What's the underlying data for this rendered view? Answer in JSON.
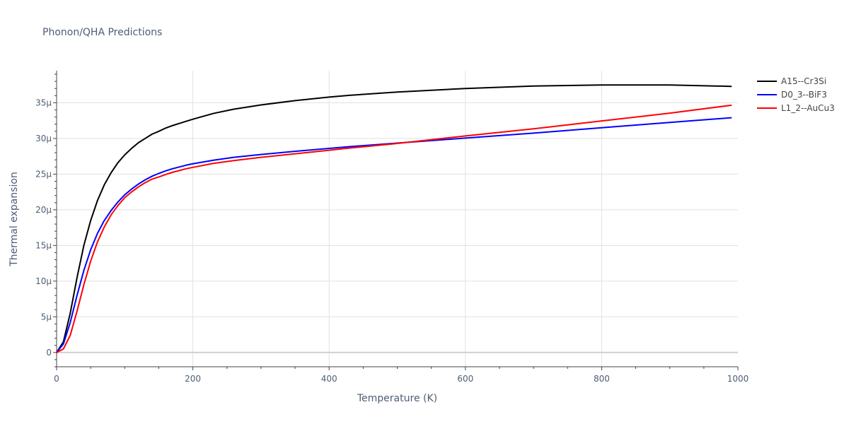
{
  "chart_data": {
    "type": "line",
    "title": "Phonon/QHA Predictions",
    "xlabel": "Temperature (K)",
    "ylabel": "Thermal expansion",
    "xlim": [
      0,
      1000
    ],
    "ylim": [
      -2e-06,
      3.95e-05
    ],
    "x_ticks": [
      0,
      200,
      400,
      600,
      800,
      1000
    ],
    "x_tick_labels": [
      "0",
      "200",
      "400",
      "600",
      "800",
      "1000"
    ],
    "y_ticks": [
      0,
      5e-06,
      1e-05,
      1.5e-05,
      2e-05,
      2.5e-05,
      3e-05,
      3.5e-05
    ],
    "y_tick_labels": [
      "0",
      "5μ",
      "10μ",
      "15μ",
      "20μ",
      "25μ",
      "30μ",
      "35μ"
    ],
    "grid": true,
    "legend_position": "top-right",
    "x": [
      0,
      10,
      20,
      30,
      40,
      50,
      60,
      70,
      80,
      90,
      100,
      110,
      120,
      130,
      140,
      150,
      160,
      170,
      180,
      190,
      200,
      230,
      260,
      300,
      350,
      400,
      430,
      500,
      600,
      700,
      800,
      900,
      990
    ],
    "series": [
      {
        "name": "A15--Cr3Si",
        "color": "#000000",
        "values": [
          0,
          1.5e-06,
          5.5e-06,
          1.05e-05,
          1.5e-05,
          1.85e-05,
          2.13e-05,
          2.35e-05,
          2.52e-05,
          2.66e-05,
          2.77e-05,
          2.86e-05,
          2.94e-05,
          3e-05,
          3.06e-05,
          3.1e-05,
          3.145e-05,
          3.18e-05,
          3.21e-05,
          3.24e-05,
          3.27e-05,
          3.35e-05,
          3.41e-05,
          3.47e-05,
          3.53e-05,
          3.58e-05,
          3.605e-05,
          3.65e-05,
          3.7e-05,
          3.735e-05,
          3.75e-05,
          3.75e-05,
          3.73e-05
        ]
      },
      {
        "name": "D0_3--BiF3",
        "color": "#0000ff",
        "values": [
          0,
          1.2e-06,
          4.2e-06,
          8e-06,
          1.15e-05,
          1.44e-05,
          1.67e-05,
          1.85e-05,
          1.99e-05,
          2.11e-05,
          2.21e-05,
          2.29e-05,
          2.36e-05,
          2.42e-05,
          2.47e-05,
          2.51e-05,
          2.545e-05,
          2.575e-05,
          2.6e-05,
          2.625e-05,
          2.645e-05,
          2.695e-05,
          2.735e-05,
          2.775e-05,
          2.82e-05,
          2.86e-05,
          2.885e-05,
          2.935e-05,
          3.005e-05,
          3.075e-05,
          3.15e-05,
          3.225e-05,
          3.29e-05
        ]
      },
      {
        "name": "L1_2--AuCu3",
        "color": "#ff0000",
        "values": [
          0,
          5e-07,
          2.4e-06,
          5.8e-06,
          9.5e-06,
          1.28e-05,
          1.55e-05,
          1.76e-05,
          1.93e-05,
          2.06e-05,
          2.17e-05,
          2.25e-05,
          2.32e-05,
          2.38e-05,
          2.43e-05,
          2.46e-05,
          2.495e-05,
          2.525e-05,
          2.55e-05,
          2.575e-05,
          2.595e-05,
          2.65e-05,
          2.69e-05,
          2.735e-05,
          2.785e-05,
          2.835e-05,
          2.865e-05,
          2.93e-05,
          3.035e-05,
          3.135e-05,
          3.245e-05,
          3.355e-05,
          3.465e-05
        ]
      }
    ]
  }
}
